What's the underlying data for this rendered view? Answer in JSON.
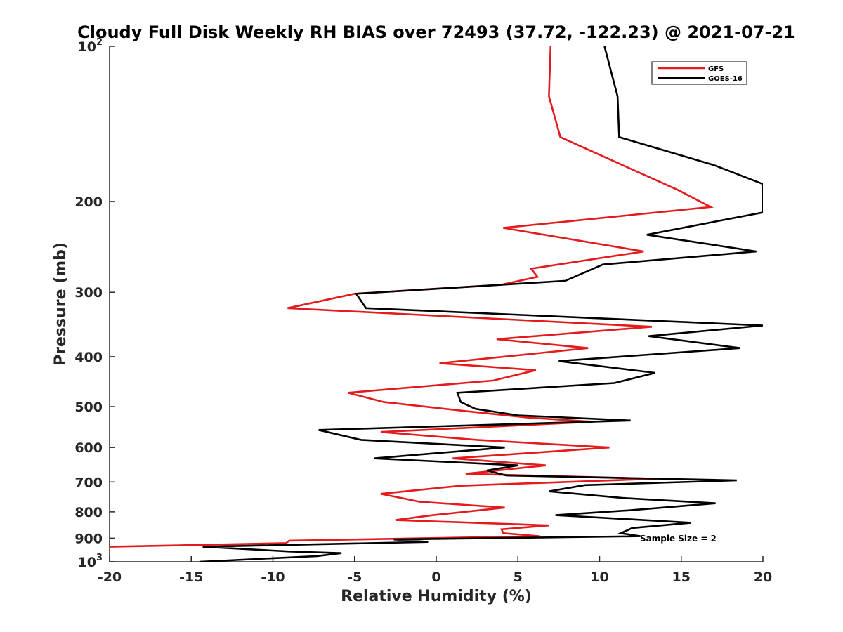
{
  "chart_data": {
    "type": "line",
    "title": "Cloudy Full Disk Weekly RH BIAS over 72493 (37.72, -122.23) @ 2021-07-21",
    "xlabel": "Relative Humidity (%)",
    "ylabel": "Pressure (mb)",
    "xlim": [
      -20,
      20
    ],
    "ylim": [
      100,
      1000
    ],
    "y_scale": "log",
    "y_reversed": true,
    "x_ticks": [
      "-20",
      "-15",
      "-10",
      "-5",
      "0",
      "5",
      "10",
      "15",
      "20"
    ],
    "y_ticks": [
      {
        "value": 100,
        "label": "10",
        "exp": "2"
      },
      {
        "value": 200,
        "label": "200",
        "exp": ""
      },
      {
        "value": 300,
        "label": "300",
        "exp": ""
      },
      {
        "value": 400,
        "label": "400",
        "exp": ""
      },
      {
        "value": 500,
        "label": "500",
        "exp": ""
      },
      {
        "value": 600,
        "label": "600",
        "exp": ""
      },
      {
        "value": 700,
        "label": "700",
        "exp": ""
      },
      {
        "value": 800,
        "label": "800",
        "exp": ""
      },
      {
        "value": 900,
        "label": "900",
        "exp": ""
      },
      {
        "value": 1000,
        "label": "10",
        "exp": "3"
      }
    ],
    "legend_position": "top-right",
    "annotation": "Sample Size = 2",
    "series": [
      {
        "name": "GFS",
        "color": "#e41a1c",
        "points": [
          [
            7.0,
            100
          ],
          [
            6.9,
            125
          ],
          [
            7.6,
            150
          ],
          [
            14.8,
            190
          ],
          [
            16.8,
            205
          ],
          [
            4.1,
            225
          ],
          [
            12.7,
            250
          ],
          [
            5.8,
            270
          ],
          [
            6.2,
            280
          ],
          [
            4.0,
            290
          ],
          [
            -5.0,
            302
          ],
          [
            -9.1,
            322
          ],
          [
            13.2,
            350
          ],
          [
            3.7,
            370
          ],
          [
            9.3,
            385
          ],
          [
            0.2,
            412
          ],
          [
            6.1,
            425
          ],
          [
            3.5,
            445
          ],
          [
            -5.4,
            470
          ],
          [
            -3.2,
            490
          ],
          [
            1.8,
            510
          ],
          [
            5.6,
            525
          ],
          [
            9.6,
            535
          ],
          [
            -3.4,
            560
          ],
          [
            2.5,
            580
          ],
          [
            10.6,
            600
          ],
          [
            1.0,
            630
          ],
          [
            6.7,
            650
          ],
          [
            1.8,
            675
          ],
          [
            13.5,
            690
          ],
          [
            1.5,
            712
          ],
          [
            -3.4,
            738
          ],
          [
            -1.0,
            765
          ],
          [
            4.2,
            785
          ],
          [
            -0.2,
            812
          ],
          [
            -2.5,
            830
          ],
          [
            6.9,
            850
          ],
          [
            4.0,
            865
          ],
          [
            4.1,
            880
          ],
          [
            6.3,
            892
          ],
          [
            -9.0,
            910
          ],
          [
            -9.2,
            920
          ],
          [
            -20.0,
            935
          ]
        ]
      },
      {
        "name": "GOES-16",
        "color": "#000000",
        "points": [
          [
            10.3,
            100
          ],
          [
            11.1,
            125
          ],
          [
            11.2,
            150
          ],
          [
            17.0,
            170
          ],
          [
            20.0,
            185
          ],
          [
            20.0,
            210
          ],
          [
            12.9,
            232
          ],
          [
            19.6,
            250
          ],
          [
            10.2,
            265
          ],
          [
            7.9,
            285
          ],
          [
            -4.9,
            302
          ],
          [
            -4.3,
            322
          ],
          [
            20.0,
            348
          ],
          [
            13.0,
            365
          ],
          [
            18.6,
            385
          ],
          [
            7.5,
            408
          ],
          [
            13.4,
            430
          ],
          [
            10.9,
            450
          ],
          [
            1.3,
            470
          ],
          [
            1.5,
            490
          ],
          [
            2.4,
            505
          ],
          [
            5.0,
            520
          ],
          [
            11.9,
            532
          ],
          [
            -7.2,
            555
          ],
          [
            -4.6,
            580
          ],
          [
            4.2,
            600
          ],
          [
            -3.8,
            630
          ],
          [
            5.0,
            650
          ],
          [
            3.1,
            665
          ],
          [
            4.3,
            680
          ],
          [
            18.4,
            695
          ],
          [
            9.1,
            710
          ],
          [
            6.9,
            730
          ],
          [
            11.4,
            752
          ],
          [
            17.1,
            770
          ],
          [
            11.7,
            795
          ],
          [
            7.3,
            812
          ],
          [
            15.6,
            840
          ],
          [
            12.0,
            860
          ],
          [
            11.3,
            880
          ],
          [
            12.5,
            892
          ],
          [
            -2.6,
            905
          ],
          [
            -0.5,
            915
          ],
          [
            -14.3,
            935
          ],
          [
            -9.0,
            955
          ],
          [
            -5.8,
            962
          ],
          [
            -7.3,
            975
          ],
          [
            -14.5,
            1000
          ]
        ]
      }
    ]
  }
}
